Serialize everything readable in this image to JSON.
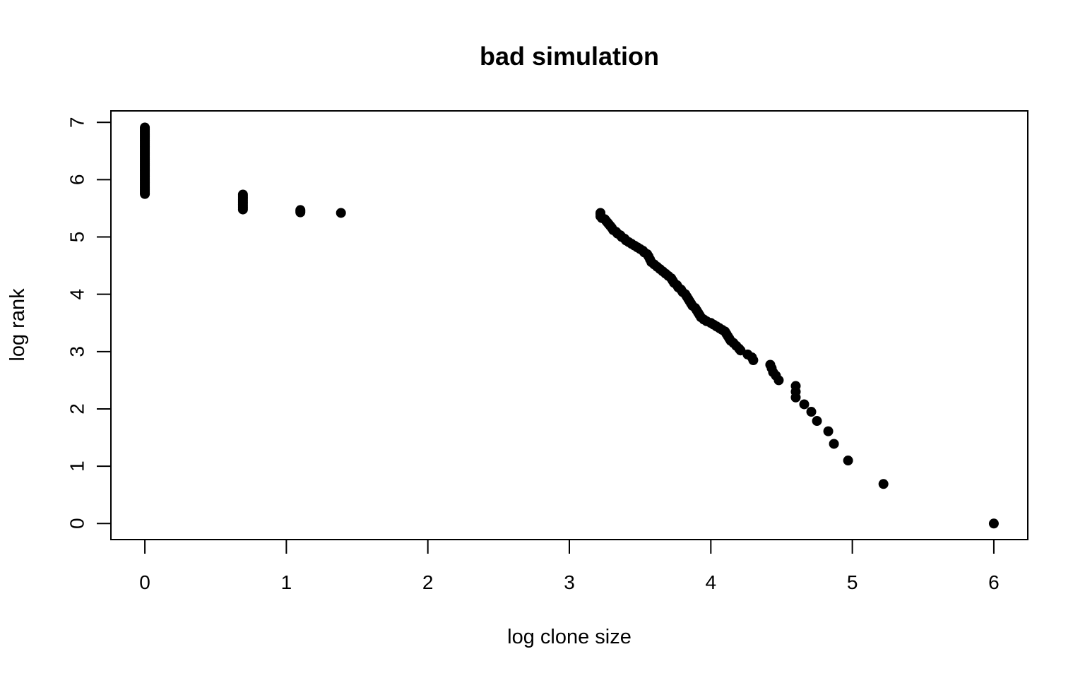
{
  "chart_data": {
    "type": "scatter",
    "title": "bad simulation",
    "xlabel": "log clone size",
    "ylabel": "log rank",
    "xlim": [
      -0.24,
      6.24
    ],
    "ylim": [
      -0.28,
      7.2
    ],
    "xticks": [
      0,
      1,
      2,
      3,
      4,
      5,
      6
    ],
    "yticks": [
      0,
      1,
      2,
      3,
      4,
      5,
      6,
      7
    ],
    "grid": false,
    "legend": "none",
    "point_color": "#000000",
    "clusters": [
      {
        "x": 0,
        "y_min": 5.75,
        "y_max": 6.91,
        "count": 60
      },
      {
        "x": 0.693,
        "y_min": 5.48,
        "y_max": 5.74,
        "count": 10
      },
      {
        "x": 1.099,
        "y_min": 5.43,
        "y_max": 5.47,
        "count": 3
      }
    ],
    "points": [
      [
        1.386,
        5.42
      ],
      [
        3.22,
        5.42
      ],
      [
        3.22,
        5.4
      ],
      [
        3.22,
        5.36
      ],
      [
        3.23,
        5.33
      ],
      [
        3.25,
        5.31
      ],
      [
        3.26,
        5.28
      ],
      [
        3.27,
        5.25
      ],
      [
        3.28,
        5.22
      ],
      [
        3.29,
        5.19
      ],
      [
        3.3,
        5.16
      ],
      [
        3.31,
        5.12
      ],
      [
        3.33,
        5.09
      ],
      [
        3.34,
        5.06
      ],
      [
        3.36,
        5.03
      ],
      [
        3.37,
        5.0
      ],
      [
        3.39,
        4.97
      ],
      [
        3.4,
        4.94
      ],
      [
        3.42,
        4.91
      ],
      [
        3.44,
        4.88
      ],
      [
        3.46,
        4.85
      ],
      [
        3.48,
        4.82
      ],
      [
        3.5,
        4.79
      ],
      [
        3.52,
        4.76
      ],
      [
        3.53,
        4.73
      ],
      [
        3.55,
        4.7
      ],
      [
        3.56,
        4.66
      ],
      [
        3.57,
        4.61
      ],
      [
        3.58,
        4.56
      ],
      [
        3.6,
        4.52
      ],
      [
        3.62,
        4.48
      ],
      [
        3.64,
        4.44
      ],
      [
        3.66,
        4.4
      ],
      [
        3.68,
        4.36
      ],
      [
        3.7,
        4.32
      ],
      [
        3.72,
        4.28
      ],
      [
        3.73,
        4.24
      ],
      [
        3.74,
        4.2
      ],
      [
        3.76,
        4.16
      ],
      [
        3.77,
        4.12
      ],
      [
        3.79,
        4.08
      ],
      [
        3.8,
        4.04
      ],
      [
        3.82,
        4.0
      ],
      [
        3.83,
        3.96
      ],
      [
        3.84,
        3.92
      ],
      [
        3.85,
        3.88
      ],
      [
        3.86,
        3.84
      ],
      [
        3.87,
        3.8
      ],
      [
        3.89,
        3.76
      ],
      [
        3.9,
        3.72
      ],
      [
        3.91,
        3.68
      ],
      [
        3.92,
        3.64
      ],
      [
        3.93,
        3.6
      ],
      [
        3.95,
        3.56
      ],
      [
        3.97,
        3.53
      ],
      [
        4.0,
        3.5
      ],
      [
        4.02,
        3.47
      ],
      [
        4.04,
        3.44
      ],
      [
        4.06,
        3.41
      ],
      [
        4.08,
        3.38
      ],
      [
        4.1,
        3.35
      ],
      [
        4.11,
        3.31
      ],
      [
        4.12,
        3.27
      ],
      [
        4.13,
        3.23
      ],
      [
        4.14,
        3.19
      ],
      [
        4.16,
        3.15
      ],
      [
        4.18,
        3.1
      ],
      [
        4.2,
        3.05
      ],
      [
        4.21,
        3.02
      ],
      [
        4.26,
        2.95
      ],
      [
        4.29,
        2.9
      ],
      [
        4.3,
        2.85
      ],
      [
        4.42,
        2.77
      ],
      [
        4.43,
        2.71
      ],
      [
        4.44,
        2.64
      ],
      [
        4.46,
        2.58
      ],
      [
        4.48,
        2.5
      ],
      [
        4.6,
        2.4
      ],
      [
        4.6,
        2.3
      ],
      [
        4.6,
        2.2
      ],
      [
        4.66,
        2.08
      ],
      [
        4.71,
        1.95
      ],
      [
        4.75,
        1.79
      ],
      [
        4.83,
        1.61
      ],
      [
        4.87,
        1.39
      ],
      [
        4.97,
        1.1
      ],
      [
        5.22,
        0.69
      ],
      [
        6.0,
        0.0
      ]
    ]
  }
}
